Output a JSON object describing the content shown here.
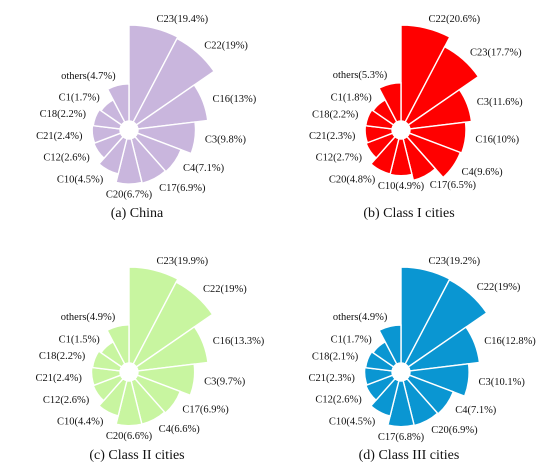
{
  "chart_data": [
    {
      "type": "pie",
      "subtype": "rose",
      "caption": "(a) China",
      "color": "#c9b6dd",
      "slices": [
        {
          "label": "C23(19.4%)",
          "category": "C23",
          "value": 19.4
        },
        {
          "label": "C22(19%)",
          "category": "C22",
          "value": 19.0
        },
        {
          "label": "C16(13%)",
          "category": "C16",
          "value": 13.0
        },
        {
          "label": "C3(9.8%)",
          "category": "C3",
          "value": 9.8
        },
        {
          "label": "C4(7.1%)",
          "category": "C4",
          "value": 7.1
        },
        {
          "label": "C17(6.9%)",
          "category": "C17",
          "value": 6.9
        },
        {
          "label": "C20(6.7%)",
          "category": "C20",
          "value": 6.7
        },
        {
          "label": "C10(4.5%)",
          "category": "C10",
          "value": 4.5
        },
        {
          "label": "C12(2.6%)",
          "category": "C12",
          "value": 2.6
        },
        {
          "label": "C21(2.4%)",
          "category": "C21",
          "value": 2.4
        },
        {
          "label": "C18(2.2%)",
          "category": "C18",
          "value": 2.2
        },
        {
          "label": "C1(1.7%)",
          "category": "C1",
          "value": 1.7
        },
        {
          "label": "others(4.7%)",
          "category": "others",
          "value": 4.7
        }
      ]
    },
    {
      "type": "pie",
      "subtype": "rose",
      "caption": "(b) Class I cities",
      "color": "#ff0000",
      "slices": [
        {
          "label": "C22(20.6%)",
          "category": "C22",
          "value": 20.6
        },
        {
          "label": "C23(17.7%)",
          "category": "C23",
          "value": 17.7
        },
        {
          "label": "C3(11.6%)",
          "category": "C3",
          "value": 11.6
        },
        {
          "label": "C16(10%)",
          "category": "C16",
          "value": 10.0
        },
        {
          "label": "C4(9.6%)",
          "category": "C4",
          "value": 9.6
        },
        {
          "label": "C17(6.5%)",
          "category": "C17",
          "value": 6.5
        },
        {
          "label": "C10(4.9%)",
          "category": "C10",
          "value": 4.9
        },
        {
          "label": "C20(4.8%)",
          "category": "C20",
          "value": 4.8
        },
        {
          "label": "C12(2.7%)",
          "category": "C12",
          "value": 2.7
        },
        {
          "label": "C21(2.3%)",
          "category": "C21",
          "value": 2.3
        },
        {
          "label": "C18(2.2%)",
          "category": "C18",
          "value": 2.2
        },
        {
          "label": "C1(1.8%)",
          "category": "C1",
          "value": 1.8
        },
        {
          "label": "others(5.3%)",
          "category": "others",
          "value": 5.3
        }
      ]
    },
    {
      "type": "pie",
      "subtype": "rose",
      "caption": "(c) Class II cities",
      "color": "#c8f5a0",
      "slices": [
        {
          "label": "C23(19.9%)",
          "category": "C23",
          "value": 19.9
        },
        {
          "label": "C22(19%)",
          "category": "C22",
          "value": 19.0
        },
        {
          "label": "C16(13.3%)",
          "category": "C16",
          "value": 13.3
        },
        {
          "label": "C3(9.7%)",
          "category": "C3",
          "value": 9.7
        },
        {
          "label": "C17(6.9%)",
          "category": "C17",
          "value": 6.9
        },
        {
          "label": "C4(6.6%)",
          "category": "C4",
          "value": 6.6
        },
        {
          "label": "C20(6.6%)",
          "category": "C20",
          "value": 6.6
        },
        {
          "label": "C10(4.4%)",
          "category": "C10",
          "value": 4.4
        },
        {
          "label": "C12(2.6%)",
          "category": "C12",
          "value": 2.6
        },
        {
          "label": "C21(2.4%)",
          "category": "C21",
          "value": 2.4
        },
        {
          "label": "C18(2.2%)",
          "category": "C18",
          "value": 2.2
        },
        {
          "label": "C1(1.5%)",
          "category": "C1",
          "value": 1.5
        },
        {
          "label": "others(4.9%)",
          "category": "others",
          "value": 4.9
        }
      ]
    },
    {
      "type": "pie",
      "subtype": "rose",
      "caption": "(d) Class III cities",
      "color": "#0a96d2",
      "slices": [
        {
          "label": "C23(19.2%)",
          "category": "C23",
          "value": 19.2
        },
        {
          "label": "C22(19%)",
          "category": "C22",
          "value": 19.0
        },
        {
          "label": "C16(12.8%)",
          "category": "C16",
          "value": 12.8
        },
        {
          "label": "C3(10.1%)",
          "category": "C3",
          "value": 10.1
        },
        {
          "label": "C4(7.1%)",
          "category": "C4",
          "value": 7.1
        },
        {
          "label": "C20(6.9%)",
          "category": "C20",
          "value": 6.9
        },
        {
          "label": "C17(6.8%)",
          "category": "C17",
          "value": 6.8
        },
        {
          "label": "C10(4.5%)",
          "category": "C10",
          "value": 4.5
        },
        {
          "label": "C12(2.6%)",
          "category": "C12",
          "value": 2.6
        },
        {
          "label": "C21(2.3%)",
          "category": "C21",
          "value": 2.3
        },
        {
          "label": "C18(2.1%)",
          "category": "C18",
          "value": 2.1
        },
        {
          "label": "C1(1.7%)",
          "category": "C1",
          "value": 1.7
        },
        {
          "label": "others(4.9%)",
          "category": "others",
          "value": 4.9
        }
      ]
    }
  ]
}
